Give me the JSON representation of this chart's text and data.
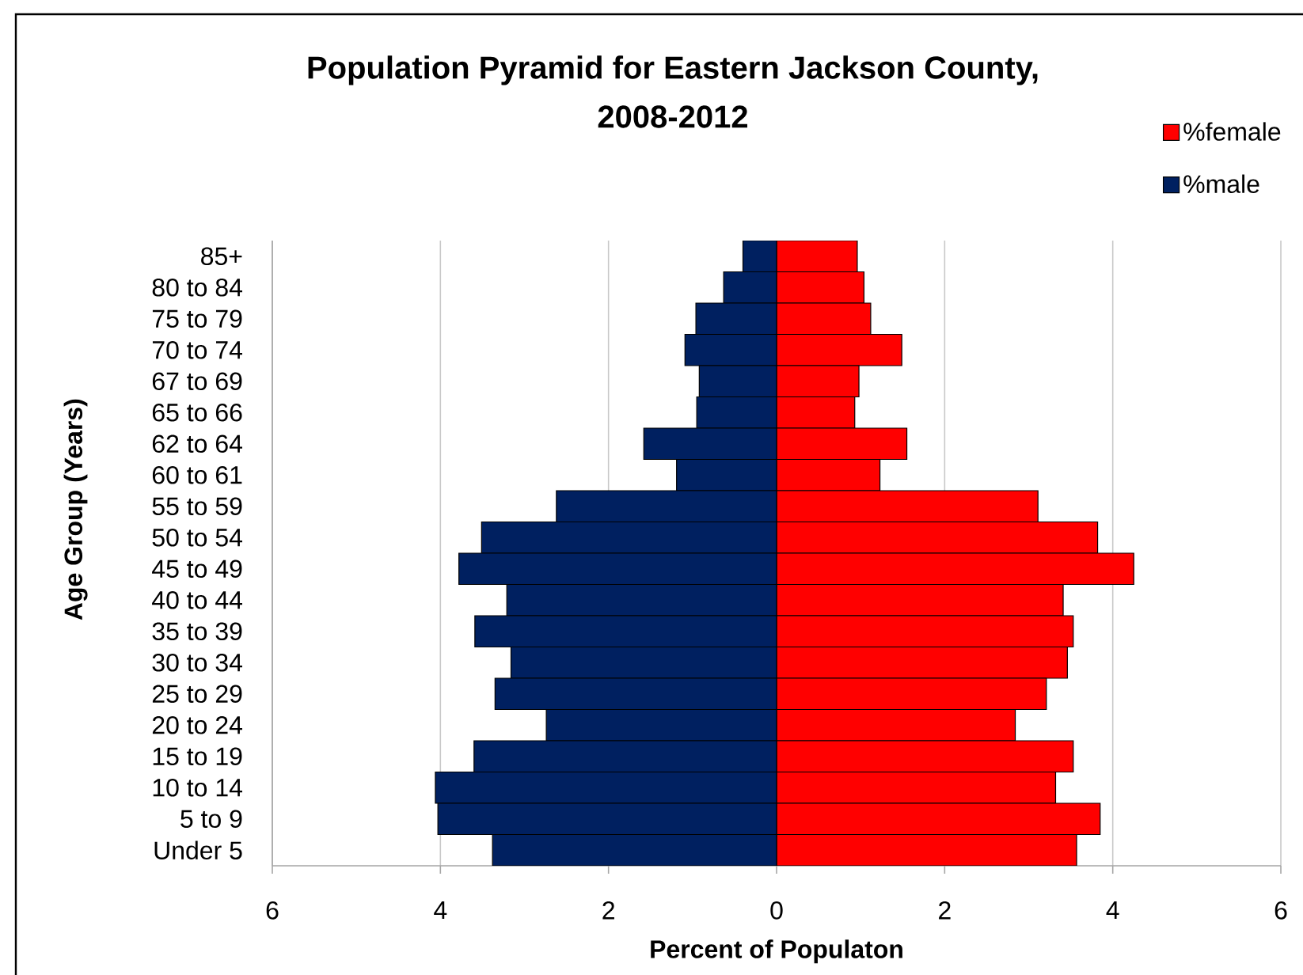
{
  "chart_data": {
    "type": "bar",
    "orientation": "horizontal",
    "stacked": true,
    "title": "Population Pyramid for Eastern Jackson County, 2008-2012",
    "xlabel": "Percent of Populaton",
    "ylabel": "Age Group (Years)",
    "categories": [
      "85+",
      "80 to 84",
      "75 to 79",
      "70 to 74",
      "67 to 69",
      "65 to 66",
      "62 to 64",
      "60 to 61",
      "55 to 59",
      "50 to 54",
      "45 to 49",
      "40 to 44",
      "35 to 39",
      "30 to 34",
      "25 to 29",
      "20 to 24",
      "15 to 19",
      "10 to 14",
      "5 to 9",
      "Under 5"
    ],
    "series": [
      {
        "name": "%female",
        "color": "#ff0000",
        "values": [
          0.96,
          1.04,
          1.12,
          1.49,
          0.98,
          0.93,
          1.55,
          1.23,
          3.11,
          3.82,
          4.25,
          3.41,
          3.53,
          3.46,
          3.21,
          2.84,
          3.53,
          3.32,
          3.85,
          3.57
        ]
      },
      {
        "name": "%male",
        "color": "#002060",
        "values": [
          -0.4,
          -0.63,
          -0.96,
          -1.09,
          -0.92,
          -0.95,
          -1.58,
          -1.19,
          -2.62,
          -3.51,
          -3.78,
          -3.21,
          -3.59,
          -3.16,
          -3.35,
          -2.74,
          -3.6,
          -4.06,
          -4.03,
          -3.38
        ]
      }
    ],
    "xlim": [
      -6,
      6
    ],
    "xticks": [
      {
        "value": -6,
        "label": "6"
      },
      {
        "value": -4,
        "label": "4"
      },
      {
        "value": -2,
        "label": "2"
      },
      0,
      2,
      4,
      6
    ],
    "grid": "x",
    "legend": "top right"
  }
}
